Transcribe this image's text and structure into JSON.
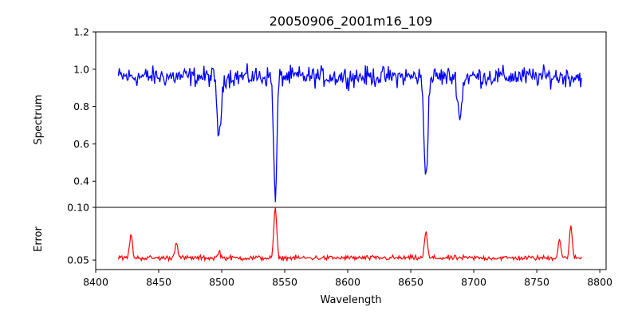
{
  "chart_data": [
    {
      "type": "line",
      "panel": "spectrum",
      "title": "20050906_2001m16_109",
      "xlabel": "",
      "ylabel": "Spectrum",
      "xlim": [
        8400,
        8805
      ],
      "ylim": [
        0.26,
        1.2
      ],
      "yticks": [
        0.4,
        0.6,
        0.8,
        1.0,
        1.2
      ],
      "ytick_labels": [
        "0.4",
        "0.6",
        "0.8",
        "1.0",
        "1.2"
      ],
      "color": "#0000ff",
      "x_range": [
        8418,
        8786
      ],
      "step": 0.7,
      "continuum": 0.96,
      "noise_amplitude": 0.08,
      "absorption_lines": [
        {
          "center": 8498,
          "min": 0.62
        },
        {
          "center": 8542.5,
          "min": 0.28
        },
        {
          "center": 8662,
          "min": 0.43
        },
        {
          "center": 8689,
          "min": 0.73
        }
      ]
    },
    {
      "type": "line",
      "panel": "error",
      "xlabel": "Wavelength",
      "ylabel": "Error",
      "xlim": [
        8400,
        8805
      ],
      "ylim": [
        0.041,
        0.1
      ],
      "yticks": [
        0.05,
        0.1
      ],
      "ytick_labels": [
        "0.05",
        "0.10"
      ],
      "xticks": [
        8400,
        8450,
        8500,
        8550,
        8600,
        8650,
        8700,
        8750,
        8800
      ],
      "xtick_labels": [
        "8400",
        "8450",
        "8500",
        "8550",
        "8600",
        "8650",
        "8700",
        "8750",
        "8800"
      ],
      "color": "#ff0000",
      "x_range": [
        8418,
        8786
      ],
      "step": 0.7,
      "baseline": 0.052,
      "noise_amplitude": 0.0035,
      "peaks": [
        {
          "center": 8428,
          "max": 0.074
        },
        {
          "center": 8464,
          "max": 0.068
        },
        {
          "center": 8498,
          "max": 0.058
        },
        {
          "center": 8542.5,
          "max": 0.1
        },
        {
          "center": 8662,
          "max": 0.077
        },
        {
          "center": 8768,
          "max": 0.07
        },
        {
          "center": 8777,
          "max": 0.081
        }
      ]
    }
  ]
}
